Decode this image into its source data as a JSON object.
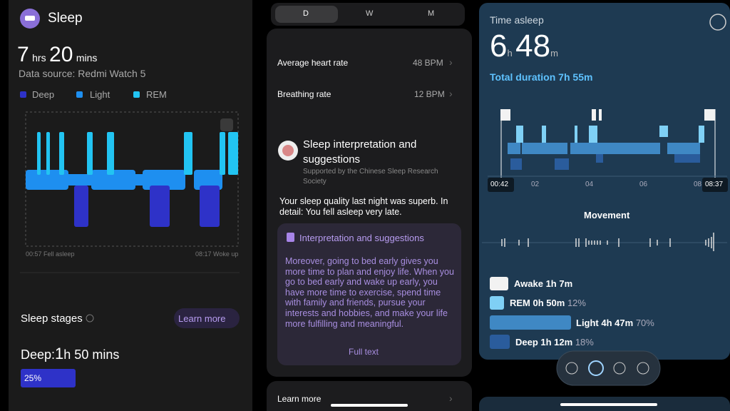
{
  "sleep_panel": {
    "title": "Sleep",
    "hours": "7",
    "hours_unit": "hrs",
    "minutes": "20",
    "minutes_unit": "mins",
    "data_source": "Data source: Redmi Watch 5",
    "legend": [
      "Deep",
      "Light",
      "REM"
    ],
    "start_label": "00:57 Fell asleep",
    "end_label": "08:17 Woke up",
    "stages_title": "Sleep stages",
    "learn_more": "Learn more",
    "deep_label": "Deep:",
    "deep_hours": "1",
    "deep_rest": "h 50 mins",
    "deep_percent": "25%"
  },
  "details_panel": {
    "tabs": [
      "D",
      "W",
      "M"
    ],
    "rows": [
      {
        "label": "Average heart rate",
        "value": "48 BPM"
      },
      {
        "label": "Breathing rate",
        "value": "12 BPM"
      }
    ],
    "interpretation_title": "Sleep interpretation and suggestions",
    "interpretation_source": "Supported by the Chinese Sleep Research Society",
    "summary": "Your sleep quality last night was superb. In detail: You fell asleep very late.",
    "card_title": "Interpretation and suggestions",
    "card_text": "Moreover, going to bed early gives you more time to plan and enjoy life. When you go to bed early and wake up early, you have more time to exercise, spend time with family and friends, pursue your interests and hobbies, and make your life more fulfilling and meaningful.",
    "full_text": "Full text",
    "learn_more": "Learn more"
  },
  "asleep_panel": {
    "title": "Time asleep",
    "hours": "6",
    "hours_unit": "h",
    "minutes": "48",
    "minutes_unit": "m",
    "total": "Total duration 7h 55m",
    "axis_labels": [
      "00:42",
      "02",
      "04",
      "06",
      "08",
      "08:37"
    ],
    "movement_title": "Movement",
    "stages": [
      {
        "label": "Awake 1h 7m",
        "percent": null
      },
      {
        "label": "REM 0h 50m",
        "percent": "12%"
      },
      {
        "label": "Light 4h 47m",
        "percent": "70%"
      },
      {
        "label": "Deep 1h 12m",
        "percent": "18%"
      }
    ]
  }
}
